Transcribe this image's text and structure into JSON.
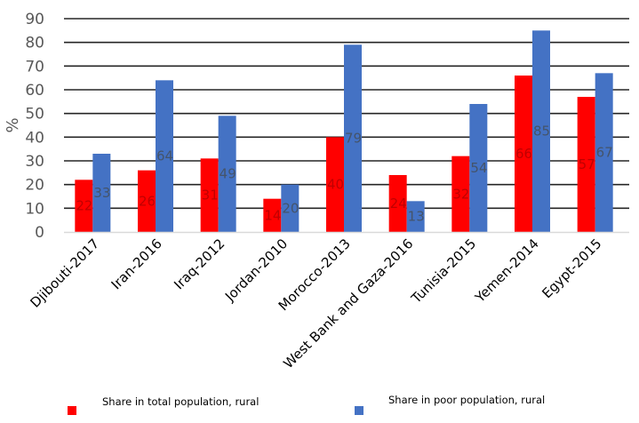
{
  "chart_data": {
    "type": "bar",
    "title": "",
    "xlabel": "",
    "ylabel": "%",
    "ylim": [
      0,
      90
    ],
    "yticks": [
      0,
      10,
      20,
      30,
      40,
      50,
      60,
      70,
      80,
      90
    ],
    "grid": true,
    "legend_position": "bottom",
    "categories": [
      "Djibouti-2017",
      "Iran-2016",
      "Iraq-2012",
      "Jordan-2010",
      "Morocco-2013",
      "West Bank and Gaza-2016",
      "Tunisia-2015",
      "Yemen-2014",
      "Egypt-2015"
    ],
    "series": [
      {
        "name": "Share in total population, rural",
        "color": "#ff0000",
        "label_color": "#c00000",
        "values": [
          22,
          26,
          31,
          14,
          40,
          24,
          32,
          66,
          57
        ]
      },
      {
        "name": "Share in poor population, rural",
        "color": "#4472c4",
        "label_color": "#44546a",
        "values": [
          33,
          64,
          49,
          20,
          79,
          13,
          54,
          85,
          67
        ]
      }
    ]
  }
}
